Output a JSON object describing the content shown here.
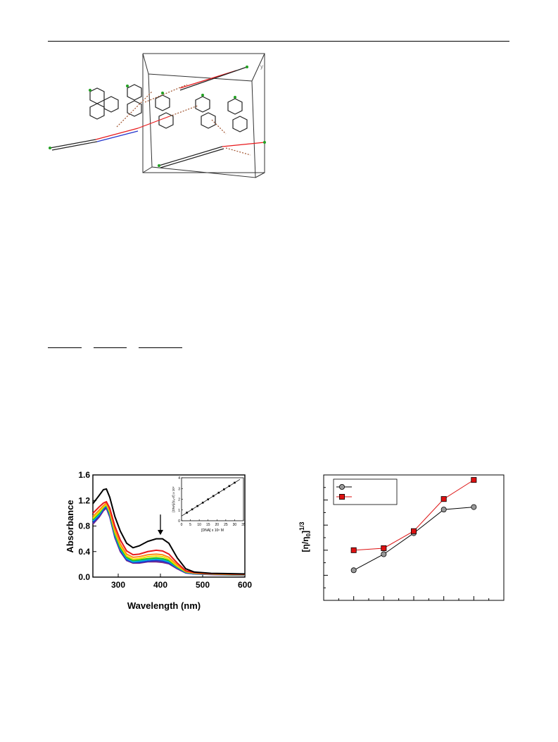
{
  "page": {
    "figure_structure": {
      "axis_letter": "y"
    }
  },
  "colors": {
    "black": "#000000",
    "red": "#e8191c",
    "orange": "#ff8c1a",
    "yellow": "#f0e400",
    "green": "#22c022",
    "cyan": "#00b0e0",
    "blue": "#2233cc",
    "purple": "#7a2a8a",
    "square_fill": "#dd1111",
    "circle_fill": "#999999"
  },
  "chart_data": [
    {
      "type": "line",
      "title": "",
      "xlabel": "Wavelength (nm)",
      "ylabel": "Absorbance",
      "xlim": [
        240,
        600
      ],
      "ylim": [
        0.0,
        1.6
      ],
      "x_ticks": [
        "300",
        "400",
        "500",
        "600"
      ],
      "y_ticks": [
        "0.0",
        "0.4",
        "0.8",
        "1.2",
        "1.6"
      ],
      "x": [
        240,
        255,
        265,
        272,
        280,
        292,
        305,
        320,
        335,
        350,
        370,
        390,
        405,
        420,
        440,
        460,
        480,
        520,
        560,
        600
      ],
      "series": [
        {
          "color": "#000000",
          "values": [
            1.15,
            1.28,
            1.37,
            1.38,
            1.25,
            0.95,
            0.72,
            0.53,
            0.46,
            0.49,
            0.56,
            0.6,
            0.6,
            0.53,
            0.3,
            0.13,
            0.08,
            0.06,
            0.055,
            0.05
          ]
        },
        {
          "color": "#e8191c",
          "values": [
            1.0,
            1.1,
            1.16,
            1.18,
            1.08,
            0.8,
            0.58,
            0.41,
            0.35,
            0.36,
            0.4,
            0.42,
            0.41,
            0.36,
            0.22,
            0.1,
            0.07,
            0.055,
            0.05,
            0.045
          ]
        },
        {
          "color": "#ff8c1a",
          "values": [
            0.95,
            1.05,
            1.12,
            1.16,
            1.04,
            0.74,
            0.52,
            0.36,
            0.31,
            0.32,
            0.35,
            0.36,
            0.35,
            0.31,
            0.19,
            0.09,
            0.065,
            0.05,
            0.045,
            0.04
          ]
        },
        {
          "color": "#f0e400",
          "values": [
            0.92,
            1.02,
            1.1,
            1.14,
            1.02,
            0.71,
            0.49,
            0.33,
            0.28,
            0.29,
            0.32,
            0.33,
            0.32,
            0.28,
            0.17,
            0.085,
            0.06,
            0.05,
            0.045,
            0.04
          ]
        },
        {
          "color": "#22c022",
          "values": [
            0.9,
            1.0,
            1.09,
            1.13,
            1.0,
            0.68,
            0.46,
            0.31,
            0.26,
            0.27,
            0.29,
            0.3,
            0.29,
            0.26,
            0.16,
            0.08,
            0.06,
            0.05,
            0.04,
            0.04
          ]
        },
        {
          "color": "#00b0e0",
          "values": [
            0.88,
            0.98,
            1.08,
            1.12,
            0.98,
            0.66,
            0.44,
            0.29,
            0.24,
            0.25,
            0.27,
            0.28,
            0.27,
            0.24,
            0.15,
            0.075,
            0.055,
            0.045,
            0.04,
            0.035
          ]
        },
        {
          "color": "#2233cc",
          "values": [
            0.85,
            0.96,
            1.06,
            1.1,
            0.96,
            0.64,
            0.42,
            0.27,
            0.23,
            0.23,
            0.25,
            0.26,
            0.25,
            0.22,
            0.14,
            0.07,
            0.05,
            0.045,
            0.04,
            0.035
          ]
        },
        {
          "color": "#7a2a8a",
          "values": [
            0.83,
            0.94,
            1.04,
            1.08,
            0.94,
            0.62,
            0.4,
            0.26,
            0.22,
            0.22,
            0.24,
            0.24,
            0.23,
            0.21,
            0.13,
            0.065,
            0.05,
            0.04,
            0.035,
            0.03
          ]
        }
      ],
      "annotation": {
        "arrow_at_x": 400,
        "direction": "down"
      },
      "inset": {
        "type": "scatter",
        "xlabel": "[DNA] x 10⁶ M",
        "ylabel": "[DNA]/(εₐ-εf) x 10⁹",
        "xlim": [
          0,
          35
        ],
        "ylim": [
          0,
          4
        ],
        "x_ticks": [
          "0",
          "5",
          "10",
          "15",
          "20",
          "25",
          "30",
          "35"
        ],
        "y_ticks": [
          "0",
          "1",
          "2",
          "3",
          "4"
        ],
        "x": [
          3,
          6,
          9,
          12,
          15,
          18,
          21,
          24,
          27,
          30
        ],
        "values": [
          0.75,
          1.06,
          1.37,
          1.68,
          1.99,
          2.3,
          2.61,
          2.92,
          3.23,
          3.54
        ],
        "fit": {
          "x": [
            0,
            33
          ],
          "y": [
            0.44,
            3.85
          ]
        }
      }
    },
    {
      "type": "line",
      "title": "",
      "xlabel": "",
      "ylabel": "[η/η0]1/3",
      "ylabel_main": "[η/η",
      "ylabel_sub": "0",
      "ylabel_tail": "]",
      "ylabel_sup": "1/3",
      "xlim": [
        0,
        1.2
      ],
      "ylim": [
        0.96,
        1.21
      ],
      "x": [
        0.2,
        0.4,
        0.6,
        0.8,
        1.0
      ],
      "series": [
        {
          "marker": "circle",
          "color": "#000000",
          "fill": "#999999",
          "values": [
            1.02,
            1.052,
            1.094,
            1.141,
            1.146
          ]
        },
        {
          "marker": "square",
          "color": "#dd1111",
          "fill": "#dd1111",
          "values": [
            1.06,
            1.064,
            1.098,
            1.162,
            1.2
          ]
        }
      ],
      "legend": {
        "placement": "top-left",
        "entries": [
          "",
          ""
        ]
      }
    }
  ]
}
